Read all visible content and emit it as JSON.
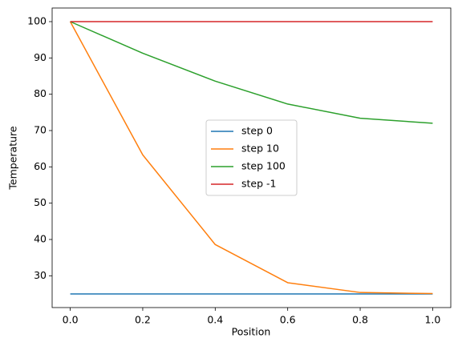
{
  "chart_data": {
    "type": "line",
    "xlabel": "Position",
    "ylabel": "Temperature",
    "x": [
      0,
      0.2,
      0.4,
      0.6,
      0.8,
      1
    ],
    "series": [
      {
        "name": "step 0",
        "color": "#1f77b4",
        "values": [
          25,
          25,
          25,
          25,
          25,
          25
        ]
      },
      {
        "name": "step 10",
        "color": "#ff7f0e",
        "values": [
          100,
          63.3,
          38.6,
          28.1,
          25.4,
          25.1
        ]
      },
      {
        "name": "step 100",
        "color": "#2ca02c",
        "values": [
          100,
          91.3,
          83.6,
          77.3,
          73.4,
          72
        ]
      },
      {
        "name": "step -1",
        "color": "#d62728",
        "values": [
          100,
          100,
          100,
          100,
          100,
          100
        ]
      }
    ],
    "xlim": [
      -0.05,
      1.05
    ],
    "ylim": [
      21.25,
      103.75
    ],
    "xticks": [
      {
        "value": 0,
        "label": "0.0"
      },
      0.2,
      0.4,
      0.6,
      0.8,
      {
        "value": 1,
        "label": "1.0"
      }
    ],
    "yticks": [
      30,
      40,
      50,
      60,
      70,
      80,
      90,
      100
    ],
    "legend": "center"
  }
}
